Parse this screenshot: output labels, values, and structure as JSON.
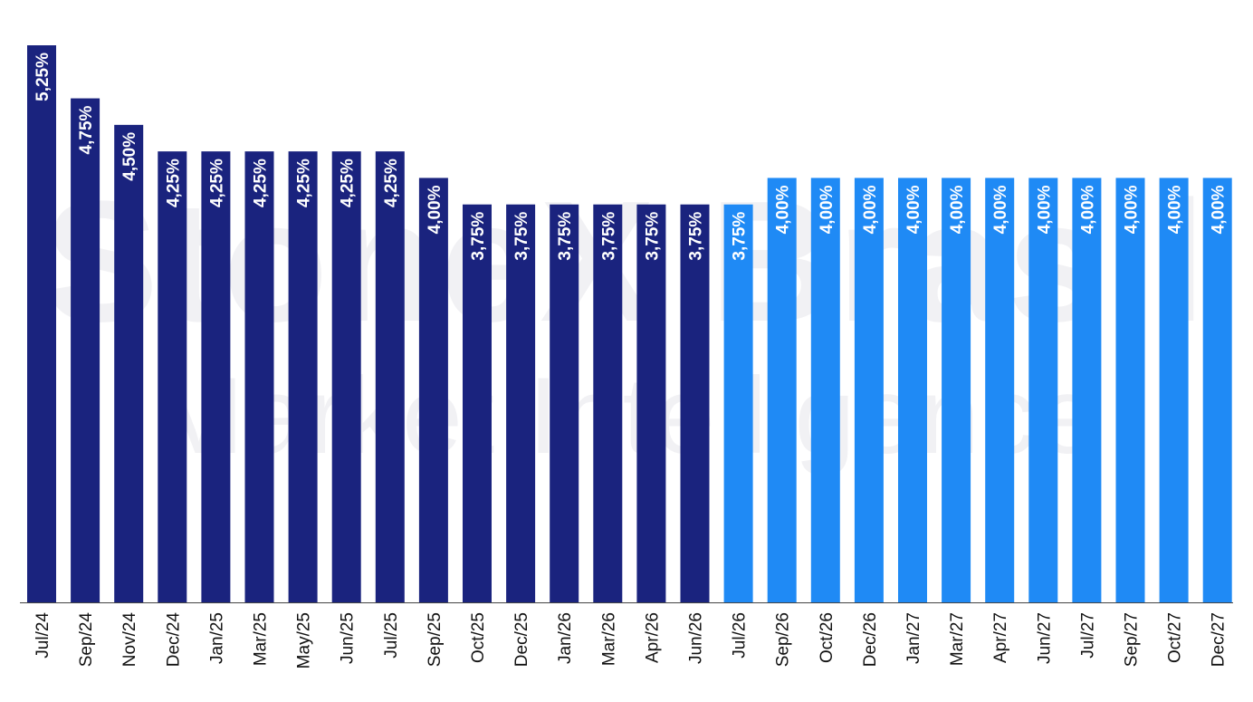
{
  "watermark": {
    "line1": "StoneX Brasil",
    "line2": "Market Intelligence"
  },
  "colors": {
    "historical": "#1a237e",
    "forecast": "#1f8af5",
    "axis": "#444444",
    "label_on_bar": "#ffffff",
    "tick_text": "#111111"
  },
  "chart_data": {
    "type": "bar",
    "title": "",
    "xlabel": "",
    "ylabel": "",
    "ylim": [
      0,
      5.25
    ],
    "grid": false,
    "categories": [
      "Jul/24",
      "Sep/24",
      "Nov/24",
      "Dec/24",
      "Jan/25",
      "Mar/25",
      "May/25",
      "Jun/25",
      "Jul/25",
      "Sep/25",
      "Oct/25",
      "Dec/25",
      "Jan/26",
      "Mar/26",
      "Apr/26",
      "Jun/26",
      "Jul/26",
      "Sep/26",
      "Oct/26",
      "Dec/26",
      "Jan/27",
      "Mar/27",
      "Apr/27",
      "Jun/27",
      "Jul/27",
      "Sep/27",
      "Oct/27",
      "Dec/27"
    ],
    "values": [
      5.25,
      4.75,
      4.5,
      4.25,
      4.25,
      4.25,
      4.25,
      4.25,
      4.25,
      4.0,
      3.75,
      3.75,
      3.75,
      3.75,
      3.75,
      3.75,
      3.75,
      4.0,
      4.0,
      4.0,
      4.0,
      4.0,
      4.0,
      4.0,
      4.0,
      4.0,
      4.0,
      4.0
    ],
    "labels": [
      "5,25%",
      "4,75%",
      "4,50%",
      "4,25%",
      "4,25%",
      "4,25%",
      "4,25%",
      "4,25%",
      "4,25%",
      "4,00%",
      "3,75%",
      "3,75%",
      "3,75%",
      "3,75%",
      "3,75%",
      "3,75%",
      "3,75%",
      "4,00%",
      "4,00%",
      "4,00%",
      "4,00%",
      "4,00%",
      "4,00%",
      "4,00%",
      "4,00%",
      "4,00%",
      "4,00%",
      "4,00%"
    ],
    "forecast_flags": [
      false,
      false,
      false,
      false,
      false,
      false,
      false,
      false,
      false,
      false,
      false,
      false,
      false,
      false,
      false,
      false,
      true,
      true,
      true,
      true,
      true,
      true,
      true,
      true,
      true,
      true,
      true,
      true
    ]
  }
}
